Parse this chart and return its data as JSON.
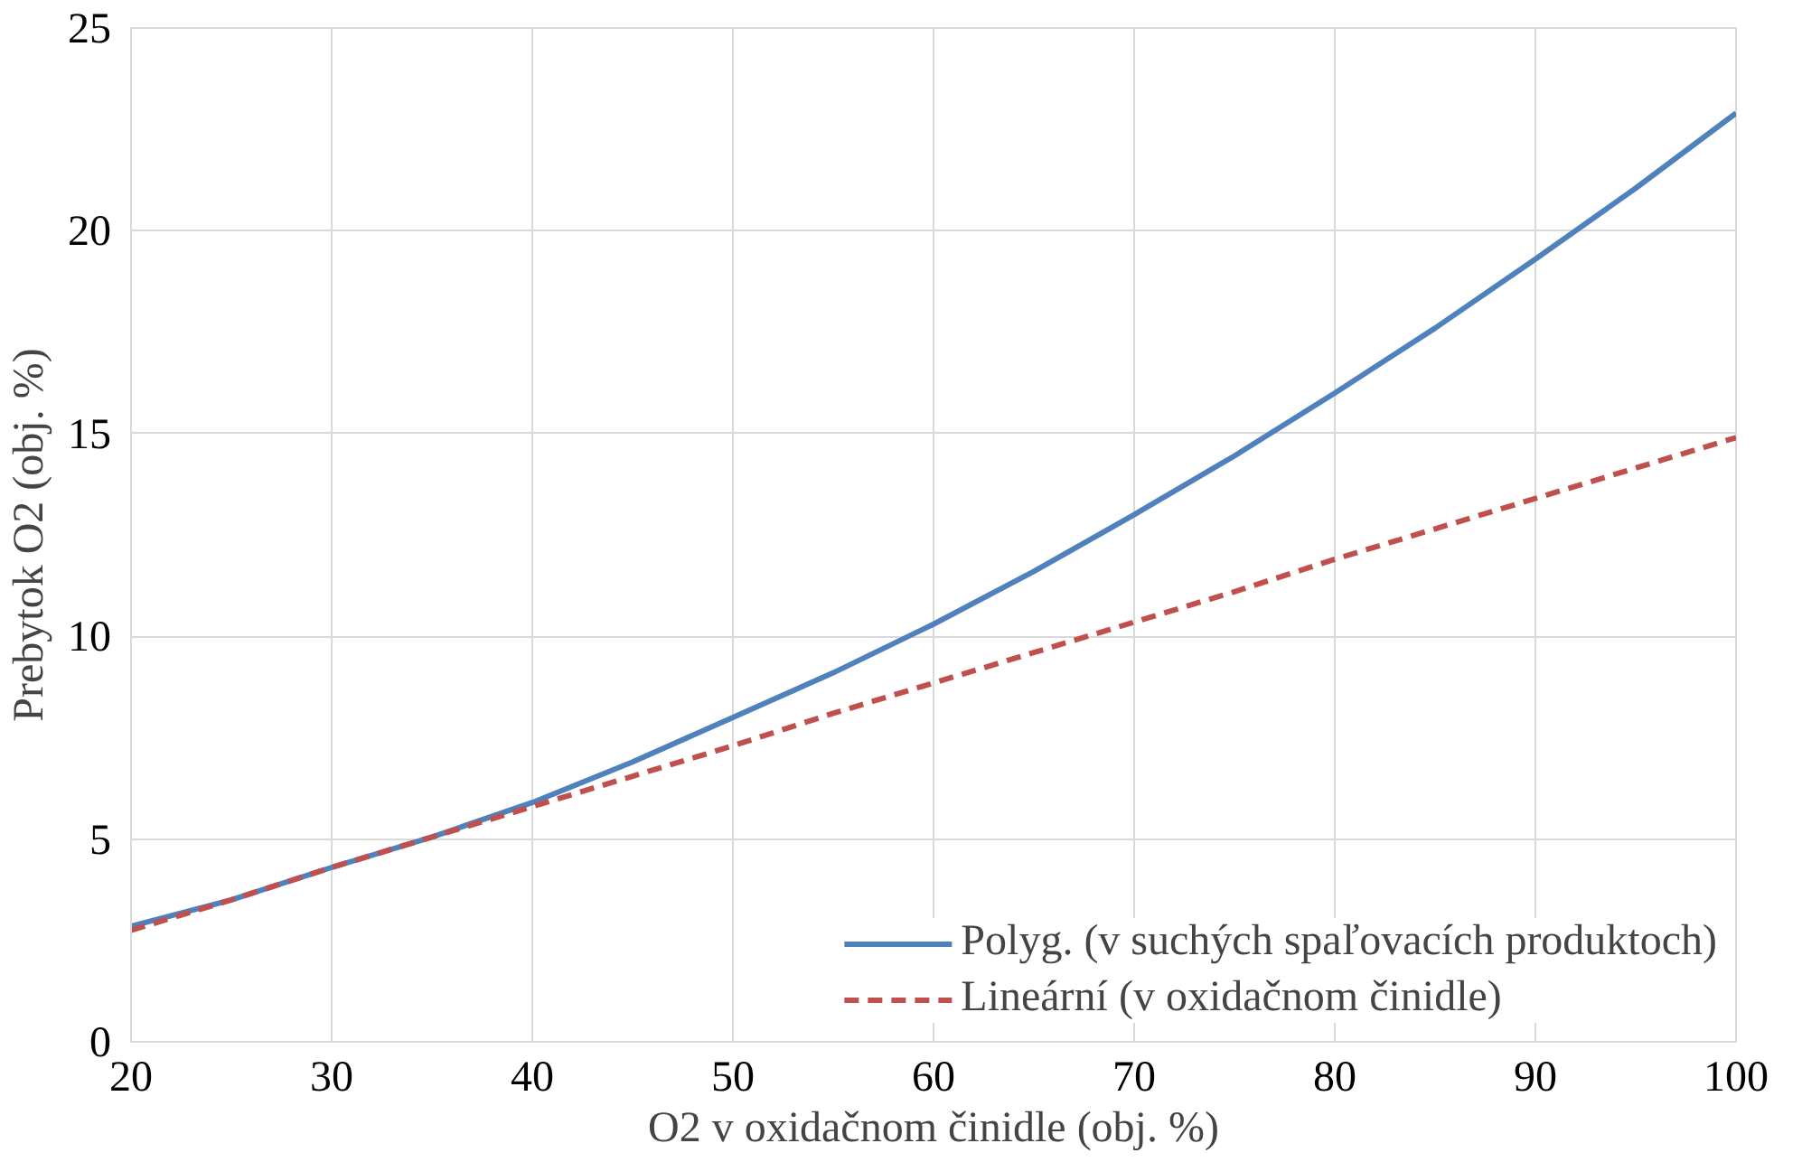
{
  "chart_data": {
    "type": "line",
    "xlabel": "O2 v oxidačnom činidle (obj. %)",
    "ylabel": "Prebytok O2 (obj. %)",
    "x": [
      20,
      25,
      30,
      35,
      40,
      45,
      50,
      55,
      60,
      65,
      70,
      75,
      80,
      85,
      90,
      95,
      100
    ],
    "series": [
      {
        "name": "Polyg. (v suchých spaľovacích produktoch)",
        "color": "#4f81bd",
        "line_style": "solid",
        "values": [
          2.85,
          3.5,
          4.3,
          5.05,
          5.9,
          6.9,
          8.0,
          9.1,
          10.3,
          11.6,
          13.0,
          14.45,
          16.0,
          17.6,
          19.3,
          21.05,
          22.9
        ]
      },
      {
        "name": "Lineární (v oxidačnom činidle)",
        "color": "#c0504d",
        "line_style": "dashed",
        "values": [
          2.75,
          3.5,
          4.3,
          5.05,
          5.8,
          6.55,
          7.3,
          8.1,
          8.85,
          9.6,
          10.35,
          11.1,
          11.9,
          12.65,
          13.4,
          14.15,
          14.9
        ]
      }
    ],
    "xlim": [
      20,
      100
    ],
    "ylim": [
      0,
      25
    ],
    "xticks": [
      20,
      30,
      40,
      50,
      60,
      70,
      80,
      90,
      100
    ],
    "yticks": [
      0,
      5,
      10,
      15,
      20,
      25
    ],
    "grid": true,
    "legend": "bottom right",
    "marker": "none"
  }
}
